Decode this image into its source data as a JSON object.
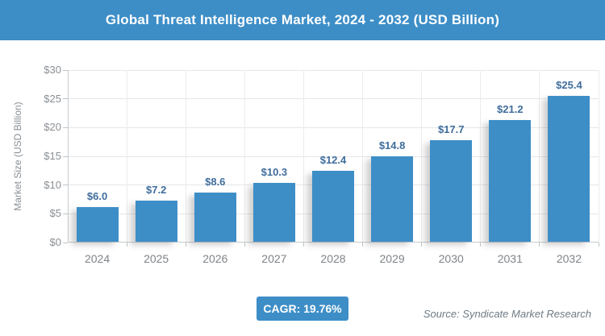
{
  "title": "Global Threat Intelligence Market, 2024 - 2032 (USD Billion)",
  "chart_data": {
    "type": "bar",
    "categories": [
      "2024",
      "2025",
      "2026",
      "2027",
      "2028",
      "2029",
      "2030",
      "2031",
      "2032"
    ],
    "values": [
      6.0,
      7.2,
      8.6,
      10.3,
      12.4,
      14.8,
      17.7,
      21.2,
      25.4
    ],
    "value_labels": [
      "$6.0",
      "$7.2",
      "$8.6",
      "$10.3",
      "$12.4",
      "$14.8",
      "$17.7",
      "$21.2",
      "$25.4"
    ],
    "title": "Global Threat Intelligence Market, 2024 - 2032 (USD Billion)",
    "xlabel": "",
    "ylabel": "Market Size (USD Billion)",
    "ylim": [
      0,
      30
    ],
    "ytick_values": [
      0,
      5,
      10,
      15,
      20,
      25,
      30
    ],
    "ytick_labels": [
      "$0",
      "$5",
      "$10",
      "$15",
      "$20",
      "$25",
      "$30"
    ],
    "grid": true,
    "legend_position": "none"
  },
  "footer": {
    "cagr_label": "CAGR: 19.76%",
    "source": "Source: Syndicate Market Research"
  },
  "colors": {
    "accent_blue": "#3D8EC7",
    "value_label_blue": "#3F6D9C",
    "axis_text_gray": "#8a8f94",
    "gridline_gray": "#e4e7e9"
  }
}
